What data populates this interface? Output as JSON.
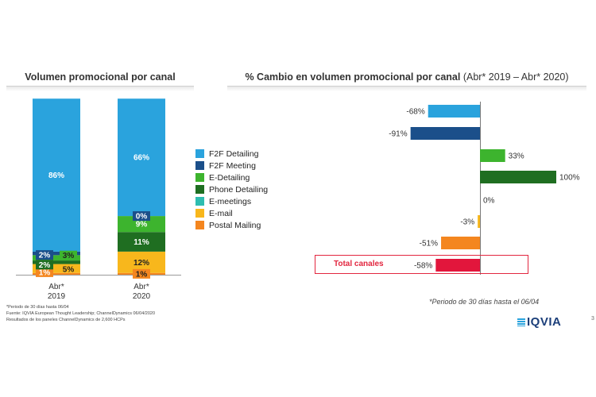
{
  "left_title": "Volumen promocional por canal",
  "right_title_bold": "% Cambio en volumen promocional por canal",
  "right_title_rest": " (Abr* 2019 – Abr* 2020)",
  "legend": [
    {
      "label": "F2F Detailing",
      "color": "#2aa3dd"
    },
    {
      "label": "F2F Meeting",
      "color": "#1b4f8a"
    },
    {
      "label": "E-Detailing",
      "color": "#3db42e"
    },
    {
      "label": "Phone Detailing",
      "color": "#1f6e21"
    },
    {
      "label": "E-meetings",
      "color": "#2ebdb0"
    },
    {
      "label": "E-mail",
      "color": "#f8b71c"
    },
    {
      "label": "Postal Mailing",
      "color": "#f4861f"
    }
  ],
  "footnote_left": [
    "*Periodo de 30 días hasta 06/04",
    "Fuente: IQVIA European Thought Leadership; ChannelDynamics 06/04/2020",
    "Resultados de los paneles ChannelDynamics de 2,600 HCPs"
  ],
  "footnote_right": "*Periodo de 30 días hasta el 06/04",
  "total_label": "Total canales",
  "logo_text": "IQVIA",
  "edge_mark": "3",
  "chart_data": [
    {
      "type": "bar",
      "stacked": true,
      "title": "Volumen promocional por canal",
      "categories": [
        "Abr*\n2019",
        "Abr*\n2020"
      ],
      "category_lines": [
        [
          "Abr*",
          "2019"
        ],
        [
          "Abr*",
          "2020"
        ]
      ],
      "ylim": [
        0,
        100
      ],
      "series": [
        {
          "name": "Postal Mailing",
          "color": "#f4861f",
          "values": [
            1,
            1
          ],
          "labels": [
            "1%",
            "1%"
          ]
        },
        {
          "name": "E-mail",
          "color": "#f8b71c",
          "values": [
            5,
            12
          ],
          "labels": [
            "5%",
            "12%"
          ]
        },
        {
          "name": "E-meetings",
          "color": "#2ebdb0",
          "values": [
            0,
            0
          ],
          "labels": [
            "",
            ""
          ]
        },
        {
          "name": "Phone Detailing",
          "color": "#1f6e21",
          "values": [
            2,
            11
          ],
          "labels": [
            "2%",
            "11%"
          ]
        },
        {
          "name": "E-Detailing",
          "color": "#3db42e",
          "values": [
            3,
            9
          ],
          "labels": [
            "3%",
            "9%"
          ]
        },
        {
          "name": "F2F Meeting",
          "color": "#1b4f8a",
          "values": [
            2,
            0
          ],
          "labels": [
            "2%",
            "0%"
          ]
        },
        {
          "name": "F2F Detailing",
          "color": "#2aa3dd",
          "values": [
            86,
            66
          ],
          "labels": [
            "86%",
            "66%"
          ]
        }
      ]
    },
    {
      "type": "bar",
      "orientation": "horizontal",
      "title": "% Cambio en volumen promocional por canal (Abr* 2019 – Abr* 2020)",
      "categories": [
        "F2F Detailing",
        "F2F Meeting",
        "E-Detailing",
        "Phone Detailing",
        "E-meetings",
        "E-mail",
        "Postal Mailing",
        "Total canales"
      ],
      "values": [
        -68,
        -91,
        33,
        100,
        0,
        -3,
        -51,
        -58
      ],
      "labels": [
        "-68%",
        "-91%",
        "33%",
        "100%",
        "0%",
        "-3%",
        "-51%",
        "-58%"
      ],
      "colors": [
        "#2aa3dd",
        "#1b4f8a",
        "#3db42e",
        "#1f6e21",
        "#2ebdb0",
        "#f8b71c",
        "#f4861f",
        "#e2163c"
      ],
      "xlim": [
        -100,
        100
      ]
    }
  ]
}
